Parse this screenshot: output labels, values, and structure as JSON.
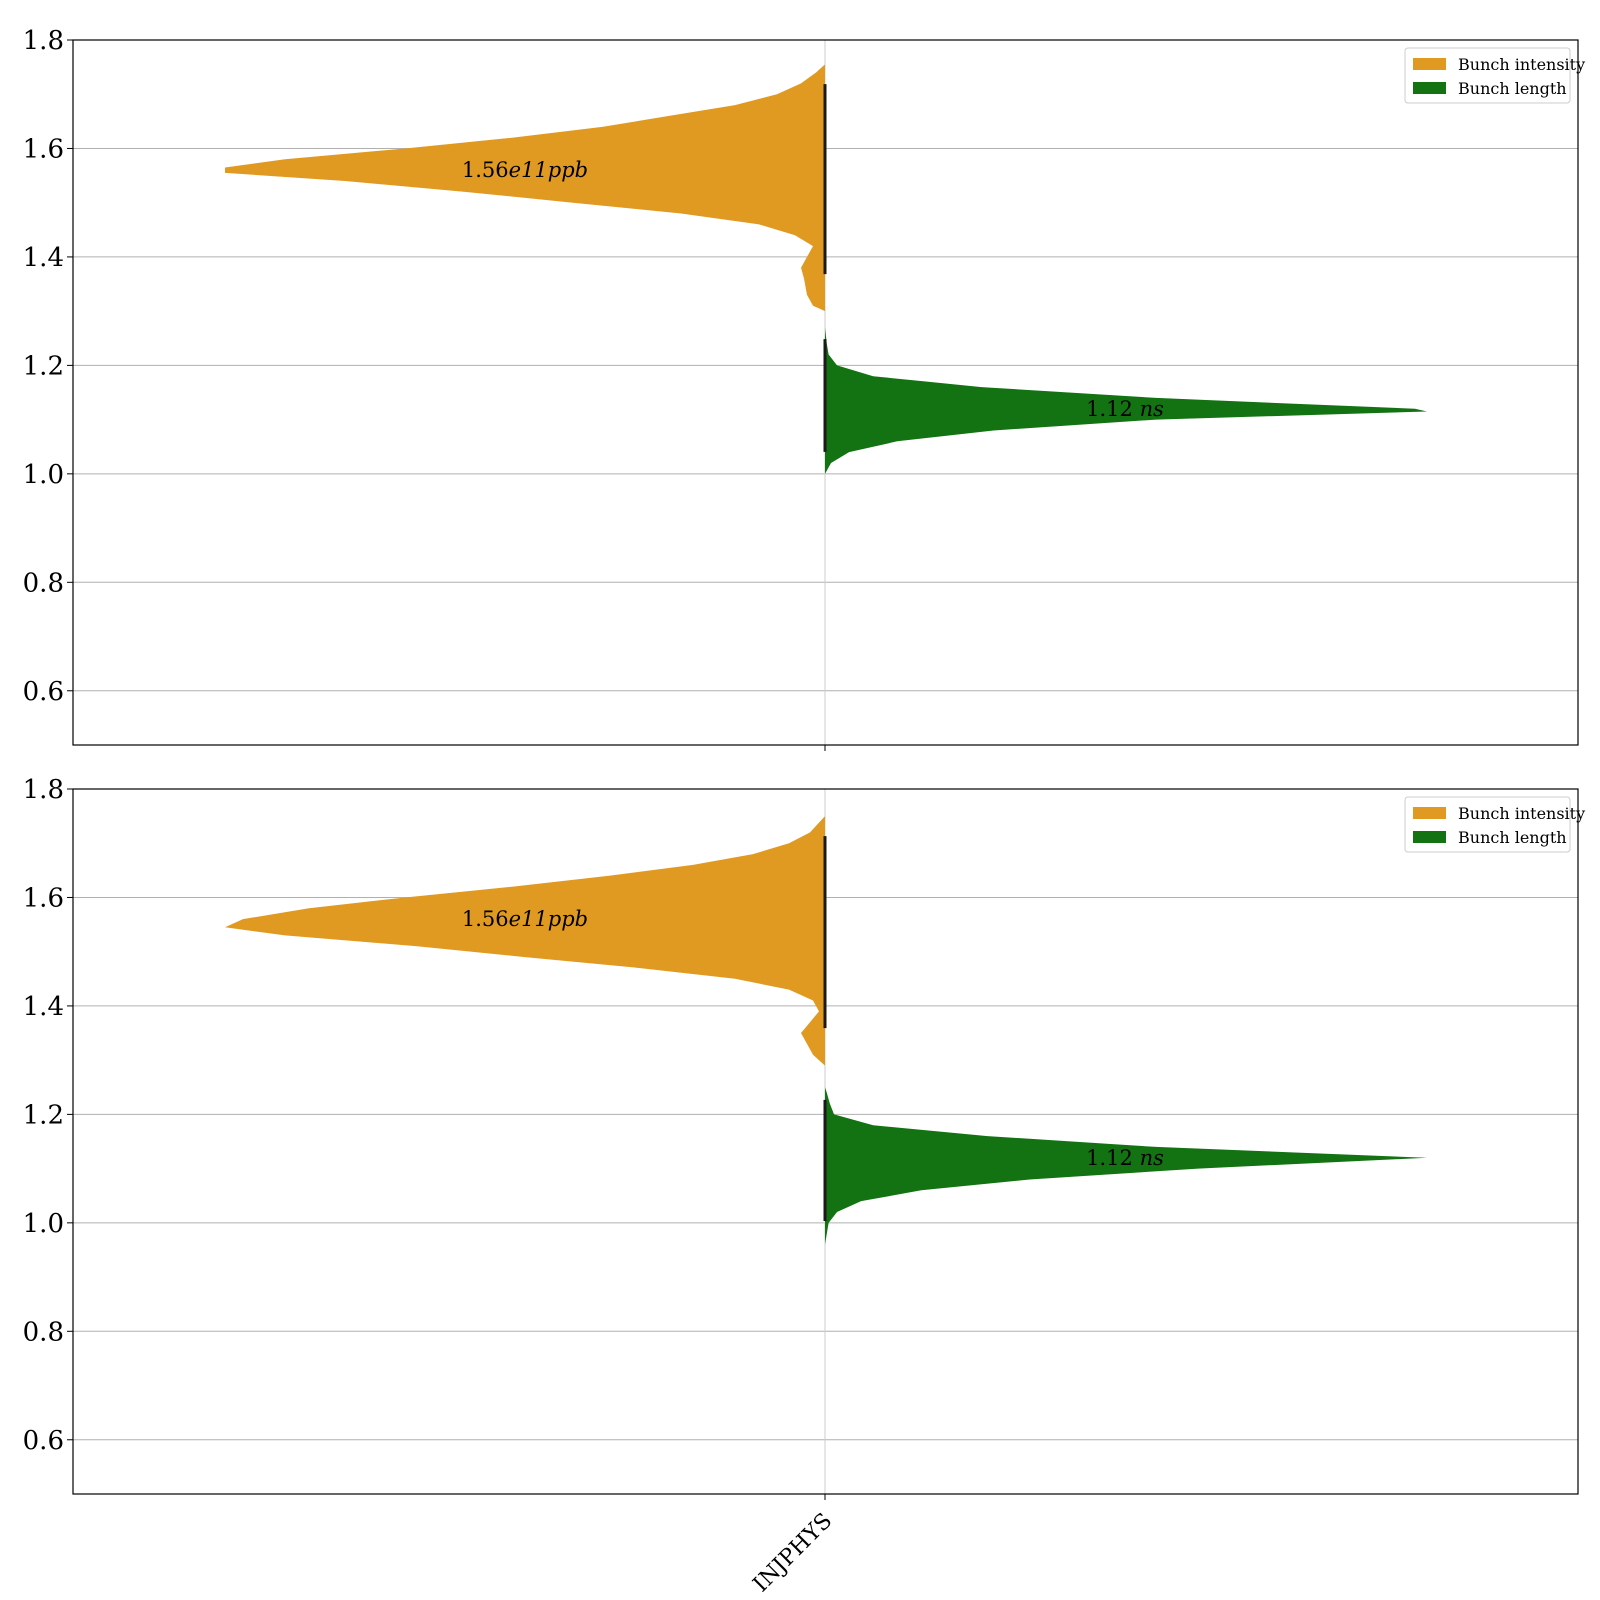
{
  "chart_data": [
    {
      "type": "split-violin",
      "categories": [
        "INJPHYS"
      ],
      "ylim": [
        0.5,
        1.8
      ],
      "yticks": [
        0.6,
        0.8,
        1.0,
        1.2,
        1.4,
        1.6,
        1.8
      ],
      "ytick_labels": [
        "0.6",
        "0.8",
        "1.0",
        "1.2",
        "1.4",
        "1.6",
        "1.8"
      ],
      "grid": "horizontal",
      "legend_position": "top-right",
      "legend": [
        "Bunch intensity",
        "Bunch length"
      ],
      "series": [
        {
          "name": "Bunch intensity",
          "side": "left",
          "color": "#e09a22",
          "median": 1.56,
          "annotation": {
            "value": "1.56",
            "unit": "e11ppb"
          },
          "density": [
            [
              1.3,
              0.0
            ],
            [
              1.31,
              0.02
            ],
            [
              1.33,
              0.03
            ],
            [
              1.36,
              0.035
            ],
            [
              1.38,
              0.04
            ],
            [
              1.4,
              0.03
            ],
            [
              1.42,
              0.02
            ],
            [
              1.44,
              0.05
            ],
            [
              1.46,
              0.11
            ],
            [
              1.48,
              0.24
            ],
            [
              1.5,
              0.42
            ],
            [
              1.52,
              0.6
            ],
            [
              1.54,
              0.8
            ],
            [
              1.555,
              1.0
            ],
            [
              1.565,
              1.0
            ],
            [
              1.58,
              0.9
            ],
            [
              1.6,
              0.7
            ],
            [
              1.62,
              0.52
            ],
            [
              1.64,
              0.37
            ],
            [
              1.66,
              0.26
            ],
            [
              1.68,
              0.15
            ],
            [
              1.7,
              0.08
            ],
            [
              1.72,
              0.04
            ],
            [
              1.74,
              0.015
            ],
            [
              1.755,
              0.0
            ]
          ]
        },
        {
          "name": "Bunch length",
          "side": "right",
          "color": "#137212",
          "median": 1.12,
          "annotation": {
            "value": "1.12",
            "unit": "ns"
          },
          "density": [
            [
              1.0,
              0.0
            ],
            [
              1.02,
              0.01
            ],
            [
              1.04,
              0.04
            ],
            [
              1.06,
              0.12
            ],
            [
              1.08,
              0.28
            ],
            [
              1.1,
              0.55
            ],
            [
              1.115,
              1.0
            ],
            [
              1.12,
              0.98
            ],
            [
              1.14,
              0.55
            ],
            [
              1.16,
              0.26
            ],
            [
              1.18,
              0.08
            ],
            [
              1.2,
              0.02
            ],
            [
              1.22,
              0.006
            ],
            [
              1.24,
              0.003
            ],
            [
              1.27,
              0.0
            ]
          ]
        }
      ]
    },
    {
      "type": "split-violin",
      "categories": [
        "INJPHYS"
      ],
      "ylim": [
        0.5,
        1.8
      ],
      "yticks": [
        0.6,
        0.8,
        1.0,
        1.2,
        1.4,
        1.6,
        1.8
      ],
      "ytick_labels": [
        "0.6",
        "0.8",
        "1.0",
        "1.2",
        "1.4",
        "1.6",
        "1.8"
      ],
      "grid": "horizontal",
      "legend_position": "top-right",
      "legend": [
        "Bunch intensity",
        "Bunch length"
      ],
      "series": [
        {
          "name": "Bunch intensity",
          "side": "left",
          "color": "#e09a22",
          "median": 1.56,
          "annotation": {
            "value": "1.56",
            "unit": "e11ppb"
          },
          "density": [
            [
              1.29,
              0.0
            ],
            [
              1.31,
              0.02
            ],
            [
              1.33,
              0.03
            ],
            [
              1.35,
              0.04
            ],
            [
              1.37,
              0.025
            ],
            [
              1.39,
              0.01
            ],
            [
              1.41,
              0.02
            ],
            [
              1.43,
              0.06
            ],
            [
              1.45,
              0.15
            ],
            [
              1.47,
              0.31
            ],
            [
              1.49,
              0.5
            ],
            [
              1.51,
              0.68
            ],
            [
              1.53,
              0.9
            ],
            [
              1.545,
              1.0
            ],
            [
              1.56,
              0.97
            ],
            [
              1.58,
              0.86
            ],
            [
              1.6,
              0.7
            ],
            [
              1.62,
              0.52
            ],
            [
              1.64,
              0.36
            ],
            [
              1.66,
              0.22
            ],
            [
              1.68,
              0.12
            ],
            [
              1.7,
              0.06
            ],
            [
              1.72,
              0.025
            ],
            [
              1.75,
              0.0
            ]
          ]
        },
        {
          "name": "Bunch length",
          "side": "right",
          "color": "#137212",
          "median": 1.12,
          "annotation": {
            "value": "1.12",
            "unit": "ns"
          },
          "density": [
            [
              0.96,
              0.0
            ],
            [
              0.98,
              0.003
            ],
            [
              1.0,
              0.006
            ],
            [
              1.02,
              0.02
            ],
            [
              1.04,
              0.06
            ],
            [
              1.06,
              0.16
            ],
            [
              1.08,
              0.34
            ],
            [
              1.1,
              0.62
            ],
            [
              1.12,
              1.0
            ],
            [
              1.14,
              0.55
            ],
            [
              1.16,
              0.27
            ],
            [
              1.18,
              0.08
            ],
            [
              1.2,
              0.015
            ],
            [
              1.22,
              0.008
            ],
            [
              1.24,
              0.003
            ],
            [
              1.25,
              0.0
            ]
          ]
        }
      ]
    }
  ],
  "x_axis": {
    "tick_label": "INJPHYS"
  }
}
